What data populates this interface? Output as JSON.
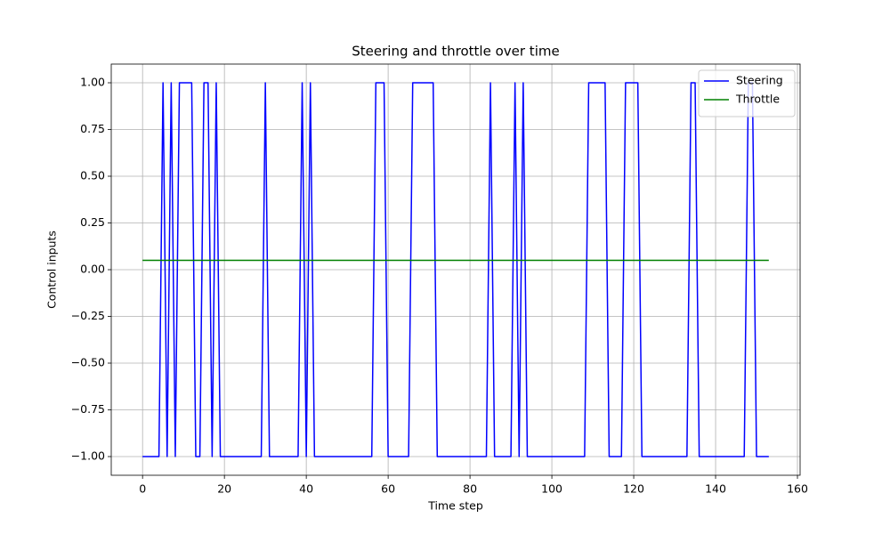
{
  "chart_data": {
    "type": "line",
    "title": "Steering and throttle over time",
    "xlabel": "Time step",
    "ylabel": "Control inputs",
    "x": [
      0,
      1,
      2,
      3,
      4,
      5,
      6,
      7,
      8,
      9,
      10,
      11,
      12,
      13,
      14,
      15,
      16,
      17,
      18,
      19,
      20,
      21,
      22,
      23,
      24,
      25,
      26,
      27,
      28,
      29,
      30,
      31,
      32,
      33,
      34,
      35,
      36,
      37,
      38,
      39,
      40,
      41,
      42,
      43,
      44,
      45,
      46,
      47,
      48,
      49,
      50,
      51,
      52,
      53,
      54,
      55,
      56,
      57,
      58,
      59,
      60,
      61,
      62,
      63,
      64,
      65,
      66,
      67,
      68,
      69,
      70,
      71,
      72,
      73,
      74,
      75,
      76,
      77,
      78,
      79,
      80,
      81,
      82,
      83,
      84,
      85,
      86,
      87,
      88,
      89,
      90,
      91,
      92,
      93,
      94,
      95,
      96,
      97,
      98,
      99,
      100,
      101,
      102,
      103,
      104,
      105,
      106,
      107,
      108,
      109,
      110,
      111,
      112,
      113,
      114,
      115,
      116,
      117,
      118,
      119,
      120,
      121,
      122,
      123,
      124,
      125,
      126,
      127,
      128,
      129,
      130,
      131,
      132,
      133,
      134,
      135,
      136,
      137,
      138,
      139,
      140,
      141,
      142,
      143,
      144,
      145,
      146,
      147,
      148,
      149,
      150,
      151,
      152,
      153
    ],
    "series": [
      {
        "name": "Steering",
        "color": "#0000ff",
        "values": [
          -1,
          -1,
          -1,
          -1,
          -1,
          1,
          -1,
          1,
          -1,
          1,
          1,
          1,
          1,
          -1,
          -1,
          1,
          1,
          -1,
          1,
          -1,
          -1,
          -1,
          -1,
          -1,
          -1,
          -1,
          -1,
          -1,
          -1,
          -1,
          1,
          -1,
          -1,
          -1,
          -1,
          -1,
          -1,
          -1,
          -1,
          1,
          -1,
          1,
          -1,
          -1,
          -1,
          -1,
          -1,
          -1,
          -1,
          -1,
          -1,
          -1,
          -1,
          -1,
          -1,
          -1,
          -1,
          1,
          1,
          1,
          -1,
          -1,
          -1,
          -1,
          -1,
          -1,
          1,
          1,
          1,
          1,
          1,
          1,
          -1,
          -1,
          -1,
          -1,
          -1,
          -1,
          -1,
          -1,
          -1,
          -1,
          -1,
          -1,
          -1,
          1,
          -1,
          -1,
          -1,
          -1,
          -1,
          1,
          -1,
          1,
          -1,
          -1,
          -1,
          -1,
          -1,
          -1,
          -1,
          -1,
          -1,
          -1,
          -1,
          -1,
          -1,
          -1,
          -1,
          1,
          1,
          1,
          1,
          1,
          -1,
          -1,
          -1,
          -1,
          1,
          1,
          1,
          1,
          -1,
          -1,
          -1,
          -1,
          -1,
          -1,
          -1,
          -1,
          -1,
          -1,
          -1,
          -1,
          1,
          1,
          -1,
          -1,
          -1,
          -1,
          -1,
          -1,
          -1,
          -1,
          -1,
          -1,
          -1,
          -1,
          1,
          1,
          -1,
          -1,
          -1,
          -1
        ]
      },
      {
        "name": "Throttle",
        "color": "#008000",
        "values": [
          0.05,
          0.05,
          0.05,
          0.05,
          0.05,
          0.05,
          0.05,
          0.05,
          0.05,
          0.05,
          0.05,
          0.05,
          0.05,
          0.05,
          0.05,
          0.05,
          0.05,
          0.05,
          0.05,
          0.05,
          0.05,
          0.05,
          0.05,
          0.05,
          0.05,
          0.05,
          0.05,
          0.05,
          0.05,
          0.05,
          0.05,
          0.05,
          0.05,
          0.05,
          0.05,
          0.05,
          0.05,
          0.05,
          0.05,
          0.05,
          0.05,
          0.05,
          0.05,
          0.05,
          0.05,
          0.05,
          0.05,
          0.05,
          0.05,
          0.05,
          0.05,
          0.05,
          0.05,
          0.05,
          0.05,
          0.05,
          0.05,
          0.05,
          0.05,
          0.05,
          0.05,
          0.05,
          0.05,
          0.05,
          0.05,
          0.05,
          0.05,
          0.05,
          0.05,
          0.05,
          0.05,
          0.05,
          0.05,
          0.05,
          0.05,
          0.05,
          0.05,
          0.05,
          0.05,
          0.05,
          0.05,
          0.05,
          0.05,
          0.05,
          0.05,
          0.05,
          0.05,
          0.05,
          0.05,
          0.05,
          0.05,
          0.05,
          0.05,
          0.05,
          0.05,
          0.05,
          0.05,
          0.05,
          0.05,
          0.05,
          0.05,
          0.05,
          0.05,
          0.05,
          0.05,
          0.05,
          0.05,
          0.05,
          0.05,
          0.05,
          0.05,
          0.05,
          0.05,
          0.05,
          0.05,
          0.05,
          0.05,
          0.05,
          0.05,
          0.05,
          0.05,
          0.05,
          0.05,
          0.05,
          0.05,
          0.05,
          0.05,
          0.05,
          0.05,
          0.05,
          0.05,
          0.05,
          0.05,
          0.05,
          0.05,
          0.05,
          0.05,
          0.05,
          0.05,
          0.05,
          0.05,
          0.05,
          0.05,
          0.05,
          0.05,
          0.05,
          0.05,
          0.05,
          0.05,
          0.05,
          0.05,
          0.05,
          0.05,
          0.05
        ]
      }
    ],
    "xlim": [
      -7.65,
      160.65
    ],
    "xticks": [
      0,
      20,
      40,
      60,
      80,
      100,
      120,
      140,
      160
    ],
    "ylim": [
      -1.1,
      1.1
    ],
    "yticks": [
      {
        "value": -1,
        "label": "−1.00"
      },
      {
        "value": -0.75,
        "label": "−0.75"
      },
      {
        "value": -0.5,
        "label": "−0.50"
      },
      {
        "value": -0.25,
        "label": "−0.25"
      },
      {
        "value": 0,
        "label": "0.00"
      },
      {
        "value": 0.25,
        "label": "0.25"
      },
      {
        "value": 0.5,
        "label": "0.50"
      },
      {
        "value": 0.75,
        "label": "0.75"
      },
      {
        "value": 1,
        "label": "1.00"
      }
    ],
    "grid": true,
    "legend": "upper right"
  }
}
